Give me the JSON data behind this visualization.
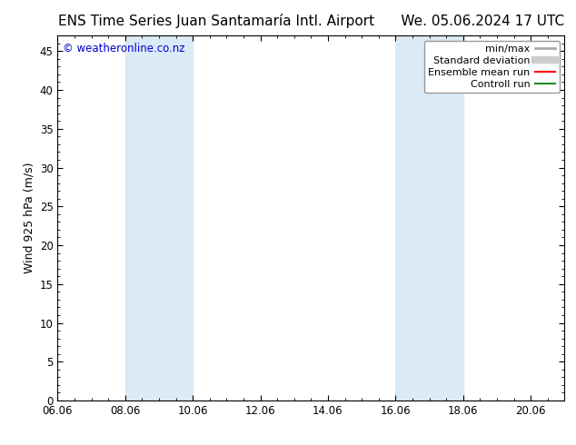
{
  "title": "ENS Time Series Juan Santamaría Intl. Airport",
  "date_str": "We. 05.06.2024 17 UTC",
  "ylabel": "Wind 925 hPa (m/s)",
  "watermark": "© weatheronline.co.nz",
  "xtick_labels": [
    "06.06",
    "08.06",
    "10.06",
    "12.06",
    "14.06",
    "16.06",
    "18.06",
    "20.06"
  ],
  "xtick_positions": [
    0,
    48,
    96,
    144,
    192,
    240,
    288,
    336
  ],
  "ylim": [
    0,
    47
  ],
  "ytick_positions": [
    0,
    5,
    10,
    15,
    20,
    25,
    30,
    35,
    40,
    45
  ],
  "ytick_labels": [
    "0",
    "5",
    "10",
    "15",
    "20",
    "25",
    "30",
    "35",
    "40",
    "45"
  ],
  "background_color": "#ffffff",
  "plot_bg_color": "#ffffff",
  "shaded_regions": [
    {
      "xmin": 48,
      "xmax": 96,
      "color": "#daeaf6"
    },
    {
      "xmin": 240,
      "xmax": 288,
      "color": "#daeaf6"
    }
  ],
  "legend_entries": [
    {
      "label": "min/max",
      "color": "#aaaaaa",
      "linewidth": 2
    },
    {
      "label": "Standard deviation",
      "color": "#cccccc",
      "linewidth": 6
    },
    {
      "label": "Ensemble mean run",
      "color": "#ff0000",
      "linewidth": 1.5
    },
    {
      "label": "Controll run",
      "color": "#228b22",
      "linewidth": 1.5
    }
  ],
  "watermark_color": "#0000cc",
  "title_fontsize": 11,
  "axis_fontsize": 9,
  "tick_fontsize": 8.5,
  "xlim": [
    0,
    360
  ],
  "grid_color": "#cccccc",
  "border_color": "#000000"
}
